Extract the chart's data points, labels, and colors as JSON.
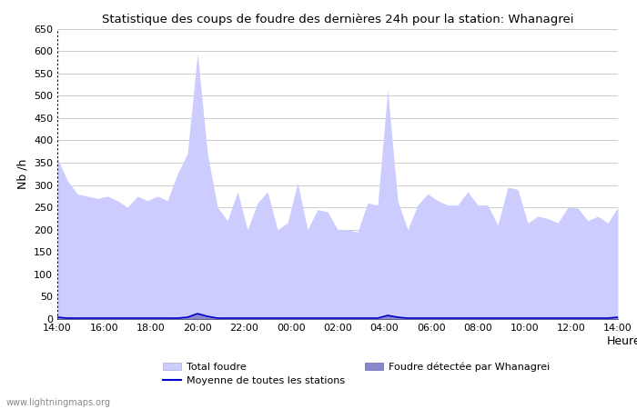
{
  "title": "Statistique des coups de foudre des dernières 24h pour la station: Whanagrei",
  "xlabel": "Heure",
  "ylabel": "Nb /h",
  "ylim": [
    0,
    650
  ],
  "yticks": [
    0,
    50,
    100,
    150,
    200,
    250,
    300,
    350,
    400,
    450,
    500,
    550,
    600,
    650
  ],
  "x_labels": [
    "14:00",
    "16:00",
    "18:00",
    "20:00",
    "22:00",
    "00:00",
    "02:00",
    "04:00",
    "06:00",
    "08:00",
    "10:00",
    "12:00",
    "14:00"
  ],
  "background_color": "#ffffff",
  "plot_bg_color": "#ffffff",
  "grid_color": "#cccccc",
  "total_foudre_color": "#ccccff",
  "local_foudre_color": "#8888cc",
  "mean_line_color": "#0000cc",
  "watermark": "www.lightningmaps.org",
  "total_foudre": [
    360,
    310,
    280,
    275,
    270,
    275,
    265,
    250,
    275,
    265,
    275,
    265,
    325,
    370,
    595,
    370,
    250,
    220,
    285,
    200,
    260,
    285,
    200,
    215,
    305,
    200,
    245,
    240,
    200,
    200,
    195,
    260,
    255,
    513,
    265,
    200,
    255,
    280,
    265,
    255,
    255,
    285,
    255,
    255,
    210,
    295,
    290,
    215,
    230,
    225,
    215,
    250,
    248,
    220,
    230,
    215,
    250
  ],
  "local_foudre": [
    5,
    3,
    2,
    2,
    2,
    2,
    2,
    2,
    2,
    2,
    2,
    2,
    3,
    5,
    14,
    7,
    3,
    2,
    2,
    2,
    2,
    2,
    2,
    2,
    2,
    2,
    2,
    2,
    2,
    2,
    2,
    2,
    2,
    10,
    5,
    2,
    2,
    2,
    2,
    2,
    2,
    2,
    2,
    2,
    2,
    2,
    2,
    2,
    2,
    2,
    2,
    2,
    2,
    2,
    2,
    2,
    5
  ],
  "mean_line": [
    4,
    2,
    2,
    2,
    2,
    2,
    2,
    2,
    2,
    2,
    2,
    2,
    2,
    4,
    12,
    6,
    2,
    2,
    2,
    2,
    2,
    2,
    2,
    2,
    2,
    2,
    2,
    2,
    2,
    2,
    2,
    2,
    2,
    8,
    4,
    2,
    2,
    2,
    2,
    2,
    2,
    2,
    2,
    2,
    2,
    2,
    2,
    2,
    2,
    2,
    2,
    2,
    2,
    2,
    2,
    2,
    4
  ],
  "figsize": [
    7.0,
    4.5
  ],
  "dpi": 100
}
